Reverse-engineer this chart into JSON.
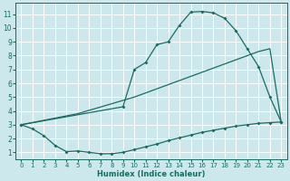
{
  "xlabel": "Humidex (Indice chaleur)",
  "bg_color": "#cce8ec",
  "grid_color": "#ffffff",
  "line_color": "#1a6b62",
  "xlim": [
    -0.5,
    23.5
  ],
  "ylim": [
    0.5,
    11.8
  ],
  "xticks": [
    0,
    1,
    2,
    3,
    4,
    5,
    6,
    7,
    8,
    9,
    10,
    11,
    12,
    13,
    14,
    15,
    16,
    17,
    18,
    19,
    20,
    21,
    22,
    23
  ],
  "yticks": [
    1,
    2,
    3,
    4,
    5,
    6,
    7,
    8,
    9,
    10,
    11
  ],
  "top_x": [
    0,
    9,
    10,
    11,
    12,
    13,
    14,
    15,
    16,
    17,
    18,
    19,
    20,
    21,
    22,
    23
  ],
  "top_y": [
    3.0,
    4.3,
    7.0,
    7.5,
    8.8,
    9.0,
    10.2,
    11.15,
    11.2,
    11.1,
    10.7,
    9.8,
    8.5,
    7.2,
    5.0,
    3.2
  ],
  "mid_x": [
    0,
    5,
    10,
    15,
    20,
    21,
    22,
    23
  ],
  "mid_y": [
    3.0,
    3.8,
    5.0,
    6.5,
    8.0,
    8.3,
    8.5,
    3.2
  ],
  "bot_x": [
    0,
    1,
    2,
    3,
    4,
    5,
    6,
    7,
    8,
    9,
    10,
    11,
    12,
    13,
    14,
    15,
    16,
    17,
    18,
    19,
    20,
    21,
    22,
    23
  ],
  "bot_y": [
    3.0,
    2.7,
    2.2,
    1.5,
    1.05,
    1.1,
    1.0,
    0.9,
    0.9,
    1.0,
    1.2,
    1.4,
    1.6,
    1.85,
    2.05,
    2.25,
    2.45,
    2.6,
    2.75,
    2.9,
    3.0,
    3.1,
    3.15,
    3.2
  ]
}
